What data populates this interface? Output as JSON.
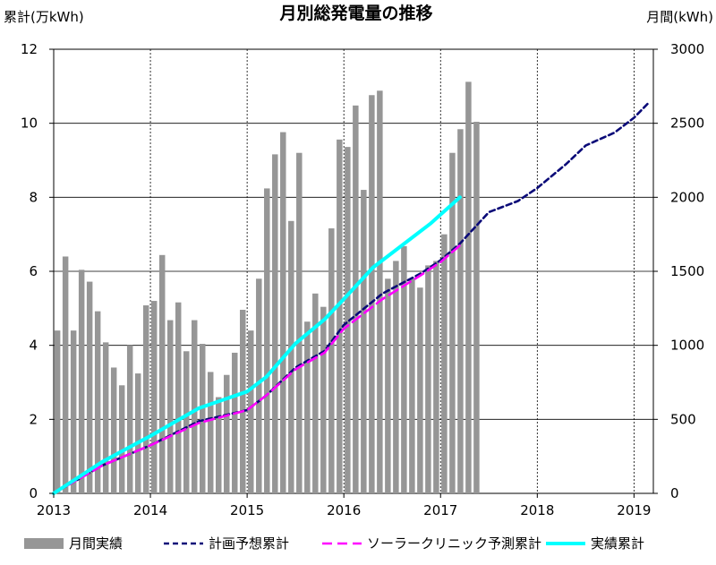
{
  "chart_data": {
    "type": "bar+line",
    "title": "月別総発電量の推移",
    "ylabel_left": "累計(万kWh)",
    "ylabel_right": "月間(kWh)",
    "ylim_left": [
      0,
      12
    ],
    "ylim_right": [
      0,
      3000
    ],
    "yticks_left": [
      "0",
      "2",
      "4",
      "6",
      "8",
      "10",
      "12"
    ],
    "yticks_right": [
      "0",
      "500",
      "1000",
      "1500",
      "2000",
      "2500",
      "3000"
    ],
    "xticks": [
      "2013",
      "2014",
      "2015",
      "2016",
      "2017",
      "2018",
      "2019"
    ],
    "xlim_years": [
      2013,
      2019.2
    ],
    "grid": true,
    "legend_position": "bottom",
    "series": [
      {
        "name": "月間実績",
        "kind": "bar",
        "axis": "right",
        "color": "#969696",
        "start": "2013-01",
        "values": [
          1100,
          1600,
          1100,
          1510,
          1430,
          1230,
          1020,
          850,
          730,
          1000,
          810,
          1270,
          1300,
          1610,
          1170,
          1290,
          960,
          1170,
          1010,
          820,
          650,
          800,
          950,
          1240,
          1100,
          1450,
          2060,
          2290,
          2440,
          1840,
          2300,
          1160,
          1350,
          1260,
          1790,
          2390,
          2340,
          2620,
          2050,
          2690,
          2720,
          1450,
          1570,
          1670,
          1450,
          1390,
          1540,
          1570,
          1750,
          2300,
          2460,
          2780,
          2510
        ]
      },
      {
        "name": "計画予想累計",
        "kind": "line",
        "style": "dashed",
        "axis": "left",
        "color": "#0a0a78",
        "points": [
          [
            2013.0,
            0.0
          ],
          [
            2013.5,
            0.75
          ],
          [
            2014.0,
            1.3
          ],
          [
            2014.5,
            1.95
          ],
          [
            2015.0,
            2.25
          ],
          [
            2015.2,
            2.65
          ],
          [
            2015.5,
            3.4
          ],
          [
            2015.8,
            3.85
          ],
          [
            2016.0,
            4.55
          ],
          [
            2016.4,
            5.4
          ],
          [
            2016.8,
            5.95
          ],
          [
            2017.0,
            6.3
          ],
          [
            2017.2,
            6.75
          ],
          [
            2017.5,
            7.6
          ],
          [
            2017.8,
            7.9
          ],
          [
            2018.0,
            8.25
          ],
          [
            2018.3,
            8.9
          ],
          [
            2018.5,
            9.4
          ],
          [
            2018.8,
            9.75
          ],
          [
            2019.0,
            10.15
          ],
          [
            2019.15,
            10.55
          ]
        ]
      },
      {
        "name": "ソーラークリニック予測累計",
        "kind": "line",
        "style": "dashed",
        "axis": "left",
        "color": "#ff00ff",
        "points": [
          [
            2013.0,
            0.0
          ],
          [
            2013.5,
            0.75
          ],
          [
            2014.0,
            1.3
          ],
          [
            2014.5,
            1.9
          ],
          [
            2015.0,
            2.25
          ],
          [
            2015.2,
            2.65
          ],
          [
            2015.5,
            3.35
          ],
          [
            2015.8,
            3.8
          ],
          [
            2016.0,
            4.45
          ],
          [
            2016.4,
            5.25
          ],
          [
            2016.8,
            5.9
          ],
          [
            2017.0,
            6.25
          ],
          [
            2017.2,
            6.7
          ]
        ]
      },
      {
        "name": "実績累計",
        "kind": "line",
        "style": "solid",
        "axis": "left",
        "color": "#00ffff",
        "points": [
          [
            2013.0,
            0.0
          ],
          [
            2013.5,
            0.85
          ],
          [
            2014.0,
            1.55
          ],
          [
            2014.5,
            2.3
          ],
          [
            2015.0,
            2.75
          ],
          [
            2015.2,
            3.15
          ],
          [
            2015.5,
            4.05
          ],
          [
            2015.8,
            4.7
          ],
          [
            2016.0,
            5.25
          ],
          [
            2016.3,
            6.1
          ],
          [
            2016.6,
            6.7
          ],
          [
            2016.9,
            7.3
          ],
          [
            2017.2,
            8.0
          ]
        ]
      }
    ]
  }
}
